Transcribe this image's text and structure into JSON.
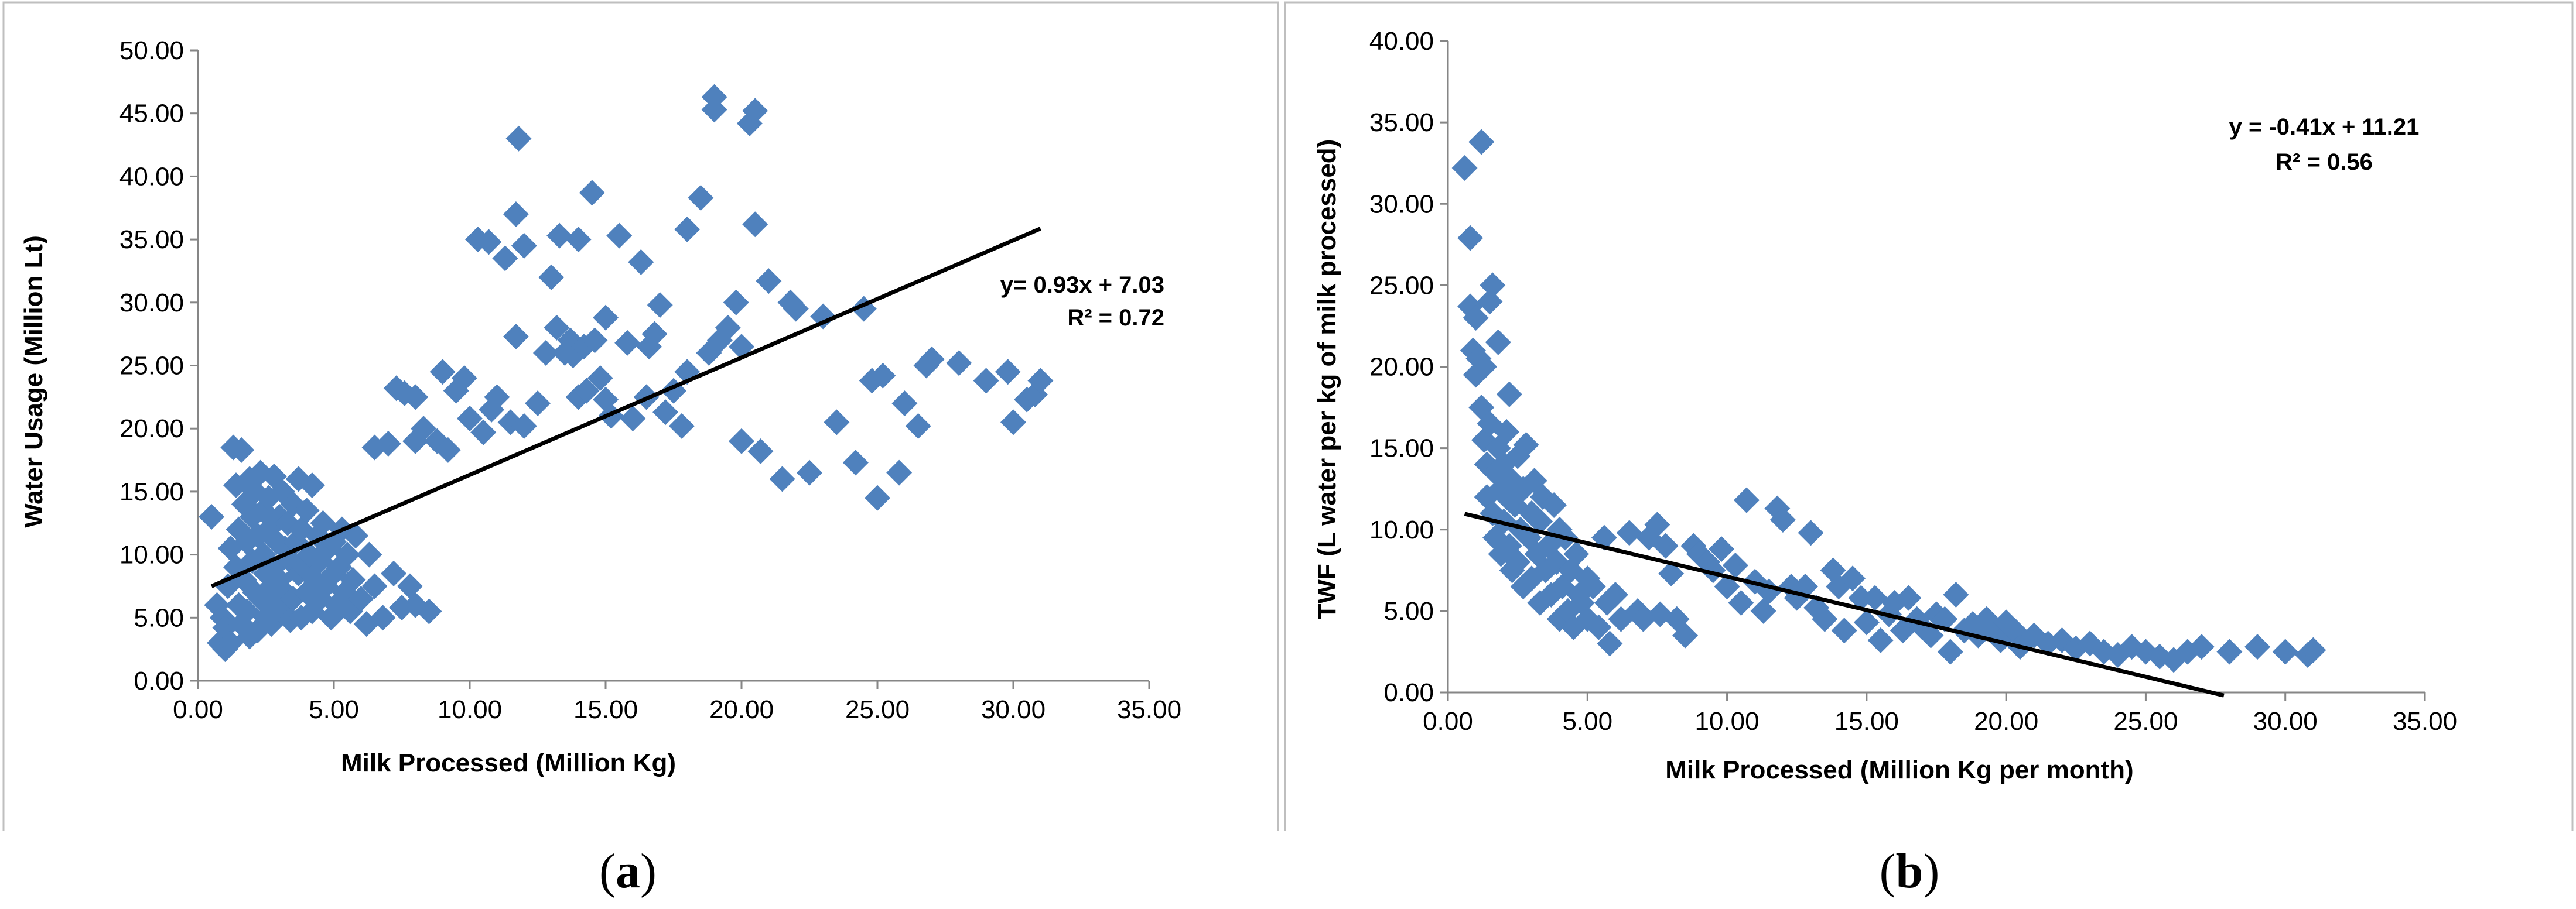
{
  "figure": {
    "panel_a_caption": "a",
    "panel_b_caption": "b"
  },
  "colors": {
    "marker": "#4F81BD",
    "trendline": "#000000",
    "frame": "#BFBFBF"
  },
  "chart_data": [
    {
      "id": "a",
      "type": "scatter",
      "title": "",
      "xlabel": "Milk Processed  (Million Kg)",
      "ylabel": "Water Usage (Million Lt)",
      "xlim": [
        0,
        35
      ],
      "ylim": [
        0,
        50
      ],
      "xticks": [
        "0.00",
        "5.00",
        "10.00",
        "15.00",
        "20.00",
        "25.00",
        "30.00",
        "35.00"
      ],
      "yticks": [
        "0.00",
        "5.00",
        "10.00",
        "15.00",
        "20.00",
        "25.00",
        "30.00",
        "35.00",
        "40.00",
        "45.00",
        "50.00"
      ],
      "trendline": {
        "slope": 0.93,
        "intercept": 7.03,
        "x_start": 0.5,
        "x_end": 31.0
      },
      "equation": "y= 0.93x + 7.03",
      "r_squared": "R² = 0.72",
      "points": [
        [
          0.5,
          13.0
        ],
        [
          0.7,
          6.0
        ],
        [
          0.8,
          3.0
        ],
        [
          0.9,
          5.0
        ],
        [
          1.0,
          2.5
        ],
        [
          1.0,
          4.2
        ],
        [
          1.1,
          7.5
        ],
        [
          1.2,
          10.5
        ],
        [
          1.2,
          3.0
        ],
        [
          1.3,
          18.5
        ],
        [
          1.4,
          9.0
        ],
        [
          1.4,
          15.5
        ],
        [
          1.5,
          6.0
        ],
        [
          1.5,
          12.0
        ],
        [
          1.6,
          4.5
        ],
        [
          1.6,
          18.3
        ],
        [
          1.7,
          14.0
        ],
        [
          1.7,
          8.0
        ],
        [
          1.8,
          11.0
        ],
        [
          1.8,
          5.5
        ],
        [
          1.9,
          16.0
        ],
        [
          1.9,
          3.5
        ],
        [
          2.0,
          9.5
        ],
        [
          2.0,
          13.0
        ],
        [
          2.1,
          7.0
        ],
        [
          2.1,
          15.0
        ],
        [
          2.2,
          4.0
        ],
        [
          2.2,
          11.5
        ],
        [
          2.3,
          16.5
        ],
        [
          2.3,
          6.5
        ],
        [
          2.4,
          10.0
        ],
        [
          2.4,
          13.5
        ],
        [
          2.5,
          5.0
        ],
        [
          2.5,
          8.5
        ],
        [
          2.6,
          14.5
        ],
        [
          2.6,
          12.0
        ],
        [
          2.7,
          7.5
        ],
        [
          2.7,
          4.5
        ],
        [
          2.8,
          9.0
        ],
        [
          2.8,
          16.2
        ],
        [
          2.9,
          11.0
        ],
        [
          2.9,
          6.0
        ],
        [
          3.0,
          13.0
        ],
        [
          3.0,
          8.0
        ],
        [
          3.1,
          5.5
        ],
        [
          3.1,
          15.0
        ],
        [
          3.2,
          10.5
        ],
        [
          3.2,
          7.0
        ],
        [
          3.3,
          12.5
        ],
        [
          3.4,
          9.5
        ],
        [
          3.4,
          4.8
        ],
        [
          3.5,
          14.0
        ],
        [
          3.5,
          6.5
        ],
        [
          3.6,
          11.0
        ],
        [
          3.7,
          8.5
        ],
        [
          3.7,
          16.0
        ],
        [
          3.8,
          5.0
        ],
        [
          3.8,
          12.0
        ],
        [
          3.9,
          9.0
        ],
        [
          4.0,
          7.0
        ],
        [
          4.0,
          13.5
        ],
        [
          4.1,
          10.0
        ],
        [
          4.2,
          5.5
        ],
        [
          4.2,
          15.5
        ],
        [
          4.3,
          8.0
        ],
        [
          4.4,
          11.5
        ],
        [
          4.5,
          6.5
        ],
        [
          4.5,
          9.5
        ],
        [
          4.6,
          12.5
        ],
        [
          4.7,
          7.5
        ],
        [
          4.8,
          10.5
        ],
        [
          4.9,
          5.0
        ],
        [
          5.0,
          8.5
        ],
        [
          5.0,
          11.0
        ],
        [
          5.1,
          6.0
        ],
        [
          5.2,
          9.0
        ],
        [
          5.3,
          12.0
        ],
        [
          5.4,
          7.0
        ],
        [
          5.5,
          10.0
        ],
        [
          5.6,
          5.5
        ],
        [
          5.7,
          8.0
        ],
        [
          5.8,
          11.5
        ],
        [
          6.0,
          6.5
        ],
        [
          6.2,
          4.5
        ],
        [
          6.3,
          10.0
        ],
        [
          6.5,
          7.5
        ],
        [
          6.5,
          18.5
        ],
        [
          6.8,
          5.0
        ],
        [
          7.0,
          18.8
        ],
        [
          7.2,
          8.5
        ],
        [
          7.3,
          23.2
        ],
        [
          7.5,
          5.8
        ],
        [
          7.6,
          22.8
        ],
        [
          7.8,
          7.5
        ],
        [
          8.0,
          22.5
        ],
        [
          8.0,
          19.0
        ],
        [
          8.0,
          6.0
        ],
        [
          8.3,
          20.0
        ],
        [
          8.5,
          5.5
        ],
        [
          8.8,
          19.0
        ],
        [
          9.0,
          24.5
        ],
        [
          9.2,
          18.3
        ],
        [
          9.5,
          23.0
        ],
        [
          9.8,
          24.0
        ],
        [
          10.0,
          20.8
        ],
        [
          10.3,
          35.0
        ],
        [
          10.5,
          19.7
        ],
        [
          10.7,
          34.8
        ],
        [
          10.8,
          21.5
        ],
        [
          11.0,
          22.5
        ],
        [
          11.3,
          33.5
        ],
        [
          11.5,
          20.5
        ],
        [
          11.7,
          27.3
        ],
        [
          11.7,
          37.0
        ],
        [
          11.8,
          43.0
        ],
        [
          12.0,
          34.5
        ],
        [
          12.0,
          20.2
        ],
        [
          12.5,
          22.0
        ],
        [
          12.8,
          26.0
        ],
        [
          13.0,
          32.0
        ],
        [
          13.2,
          28.0
        ],
        [
          13.3,
          35.3
        ],
        [
          13.5,
          26.0
        ],
        [
          13.7,
          27.0
        ],
        [
          13.8,
          25.8
        ],
        [
          14.0,
          35.0
        ],
        [
          14.0,
          22.5
        ],
        [
          14.2,
          26.5
        ],
        [
          14.3,
          23.0
        ],
        [
          14.5,
          38.7
        ],
        [
          14.6,
          27.0
        ],
        [
          14.8,
          24.0
        ],
        [
          15.0,
          22.3
        ],
        [
          15.0,
          28.8
        ],
        [
          15.2,
          21.0
        ],
        [
          15.5,
          35.3
        ],
        [
          15.8,
          26.8
        ],
        [
          16.0,
          20.8
        ],
        [
          16.3,
          33.2
        ],
        [
          16.5,
          22.5
        ],
        [
          16.6,
          26.5
        ],
        [
          16.8,
          27.5
        ],
        [
          17.0,
          29.8
        ],
        [
          17.2,
          21.3
        ],
        [
          17.5,
          23.0
        ],
        [
          17.8,
          20.2
        ],
        [
          18.0,
          35.8
        ],
        [
          18.0,
          24.5
        ],
        [
          18.5,
          38.3
        ],
        [
          18.8,
          26.0
        ],
        [
          19.0,
          46.3
        ],
        [
          19.0,
          45.3
        ],
        [
          19.2,
          27.0
        ],
        [
          19.5,
          28.0
        ],
        [
          19.8,
          30.0
        ],
        [
          20.0,
          19.0
        ],
        [
          20.0,
          26.5
        ],
        [
          20.3,
          44.2
        ],
        [
          20.5,
          45.2
        ],
        [
          20.5,
          36.2
        ],
        [
          20.7,
          18.2
        ],
        [
          21.0,
          31.7
        ],
        [
          21.5,
          16.0
        ],
        [
          21.8,
          30.0
        ],
        [
          22.0,
          29.5
        ],
        [
          22.5,
          16.5
        ],
        [
          23.0,
          28.9
        ],
        [
          23.5,
          20.5
        ],
        [
          24.2,
          17.3
        ],
        [
          24.5,
          29.5
        ],
        [
          24.8,
          23.8
        ],
        [
          25.0,
          14.5
        ],
        [
          25.2,
          24.2
        ],
        [
          25.8,
          16.5
        ],
        [
          26.0,
          22.0
        ],
        [
          26.5,
          20.2
        ],
        [
          26.8,
          25.0
        ],
        [
          27.0,
          25.5
        ],
        [
          28.0,
          25.2
        ],
        [
          29.0,
          23.8
        ],
        [
          29.8,
          24.5
        ],
        [
          30.0,
          20.5
        ],
        [
          30.5,
          22.3
        ],
        [
          30.8,
          22.7
        ],
        [
          31.0,
          23.8
        ]
      ]
    },
    {
      "id": "b",
      "type": "scatter",
      "title": "",
      "xlabel": "Milk Processed (Million Kg per month)",
      "ylabel": "TWF (L water  per kg of  milk processed)",
      "xlim": [
        0,
        35
      ],
      "ylim": [
        0,
        40
      ],
      "xticks": [
        "0.00",
        "5.00",
        "10.00",
        "15.00",
        "20.00",
        "25.00",
        "30.00",
        "35.00"
      ],
      "yticks": [
        "0.00",
        "5.00",
        "10.00",
        "15.00",
        "20.00",
        "25.00",
        "30.00",
        "35.00",
        "40.00"
      ],
      "trendline": {
        "slope": -0.41,
        "intercept": 11.21,
        "x_start": 0.6,
        "x_end": 27.8
      },
      "equation": "y = -0.41x + 11.21",
      "r_squared": "R² = 0.56",
      "points": [
        [
          0.6,
          32.2
        ],
        [
          0.8,
          27.9
        ],
        [
          0.8,
          23.7
        ],
        [
          0.9,
          21.0
        ],
        [
          1.0,
          19.5
        ],
        [
          1.0,
          23.0
        ],
        [
          1.1,
          20.5
        ],
        [
          1.2,
          17.5
        ],
        [
          1.2,
          33.8
        ],
        [
          1.3,
          15.5
        ],
        [
          1.3,
          20.0
        ],
        [
          1.4,
          14.0
        ],
        [
          1.4,
          12.0
        ],
        [
          1.5,
          24.0
        ],
        [
          1.5,
          16.5
        ],
        [
          1.6,
          25.0
        ],
        [
          1.6,
          11.0
        ],
        [
          1.7,
          13.5
        ],
        [
          1.7,
          9.5
        ],
        [
          1.8,
          21.5
        ],
        [
          1.8,
          15.0
        ],
        [
          1.9,
          12.5
        ],
        [
          1.9,
          8.5
        ],
        [
          2.0,
          14.0
        ],
        [
          2.0,
          10.5
        ],
        [
          2.1,
          16.0
        ],
        [
          2.1,
          12.0
        ],
        [
          2.2,
          9.0
        ],
        [
          2.2,
          18.3
        ],
        [
          2.3,
          13.0
        ],
        [
          2.3,
          7.5
        ],
        [
          2.4,
          11.5
        ],
        [
          2.5,
          14.5
        ],
        [
          2.5,
          8.0
        ],
        [
          2.6,
          10.0
        ],
        [
          2.7,
          12.5
        ],
        [
          2.7,
          6.5
        ],
        [
          2.8,
          15.2
        ],
        [
          2.9,
          9.5
        ],
        [
          3.0,
          11.0
        ],
        [
          3.0,
          7.0
        ],
        [
          3.1,
          13.0
        ],
        [
          3.2,
          8.5
        ],
        [
          3.3,
          10.5
        ],
        [
          3.3,
          5.5
        ],
        [
          3.4,
          12.0
        ],
        [
          3.5,
          7.5
        ],
        [
          3.6,
          9.0
        ],
        [
          3.7,
          6.0
        ],
        [
          3.8,
          11.5
        ],
        [
          3.9,
          8.0
        ],
        [
          4.0,
          4.5
        ],
        [
          4.0,
          10.0
        ],
        [
          4.1,
          6.5
        ],
        [
          4.2,
          9.5
        ],
        [
          4.3,
          5.0
        ],
        [
          4.4,
          7.5
        ],
        [
          4.5,
          4.0
        ],
        [
          4.6,
          8.5
        ],
        [
          4.7,
          6.0
        ],
        [
          4.8,
          5.5
        ],
        [
          5.0,
          7.0
        ],
        [
          5.0,
          4.5
        ],
        [
          5.2,
          6.5
        ],
        [
          5.4,
          4.0
        ],
        [
          5.6,
          9.5
        ],
        [
          5.7,
          5.5
        ],
        [
          5.8,
          3.0
        ],
        [
          6.0,
          6.0
        ],
        [
          6.2,
          4.5
        ],
        [
          6.5,
          9.8
        ],
        [
          6.8,
          5.0
        ],
        [
          7.0,
          4.5
        ],
        [
          7.2,
          9.5
        ],
        [
          7.5,
          10.3
        ],
        [
          7.6,
          4.8
        ],
        [
          7.8,
          9.0
        ],
        [
          8.0,
          7.3
        ],
        [
          8.2,
          4.5
        ],
        [
          8.5,
          3.5
        ],
        [
          8.8,
          9.0
        ],
        [
          9.0,
          8.5
        ],
        [
          9.3,
          8.0
        ],
        [
          9.5,
          7.5
        ],
        [
          9.8,
          8.8
        ],
        [
          10.0,
          6.5
        ],
        [
          10.3,
          7.8
        ],
        [
          10.5,
          5.5
        ],
        [
          10.7,
          11.8
        ],
        [
          11.0,
          6.8
        ],
        [
          11.3,
          5.0
        ],
        [
          11.5,
          6.2
        ],
        [
          11.8,
          11.3
        ],
        [
          12.0,
          10.6
        ],
        [
          12.3,
          6.5
        ],
        [
          12.5,
          5.8
        ],
        [
          12.8,
          6.5
        ],
        [
          13.0,
          9.8
        ],
        [
          13.2,
          5.2
        ],
        [
          13.5,
          4.5
        ],
        [
          13.8,
          7.5
        ],
        [
          14.0,
          6.5
        ],
        [
          14.2,
          3.8
        ],
        [
          14.5,
          7.0
        ],
        [
          14.8,
          5.8
        ],
        [
          15.0,
          4.3
        ],
        [
          15.3,
          5.8
        ],
        [
          15.5,
          3.2
        ],
        [
          15.8,
          4.8
        ],
        [
          16.0,
          5.5
        ],
        [
          16.3,
          3.8
        ],
        [
          16.5,
          5.8
        ],
        [
          16.8,
          4.5
        ],
        [
          17.0,
          4.0
        ],
        [
          17.3,
          3.5
        ],
        [
          17.5,
          4.8
        ],
        [
          17.8,
          4.5
        ],
        [
          18.0,
          2.5
        ],
        [
          18.2,
          6.0
        ],
        [
          18.5,
          3.8
        ],
        [
          18.8,
          4.2
        ],
        [
          19.0,
          3.5
        ],
        [
          19.3,
          4.5
        ],
        [
          19.5,
          4.0
        ],
        [
          19.8,
          3.2
        ],
        [
          20.0,
          4.3
        ],
        [
          20.3,
          3.8
        ],
        [
          20.5,
          2.8
        ],
        [
          21.0,
          3.5
        ],
        [
          21.5,
          3.0
        ],
        [
          22.0,
          3.2
        ],
        [
          22.5,
          2.7
        ],
        [
          23.0,
          3.0
        ],
        [
          23.5,
          2.5
        ],
        [
          24.0,
          2.3
        ],
        [
          24.5,
          2.8
        ],
        [
          25.0,
          2.5
        ],
        [
          25.5,
          2.2
        ],
        [
          26.0,
          2.0
        ],
        [
          26.5,
          2.5
        ],
        [
          27.0,
          2.8
        ],
        [
          28.0,
          2.5
        ],
        [
          29.0,
          2.8
        ],
        [
          30.0,
          2.5
        ],
        [
          30.8,
          2.3
        ],
        [
          31.0,
          2.6
        ]
      ]
    }
  ]
}
